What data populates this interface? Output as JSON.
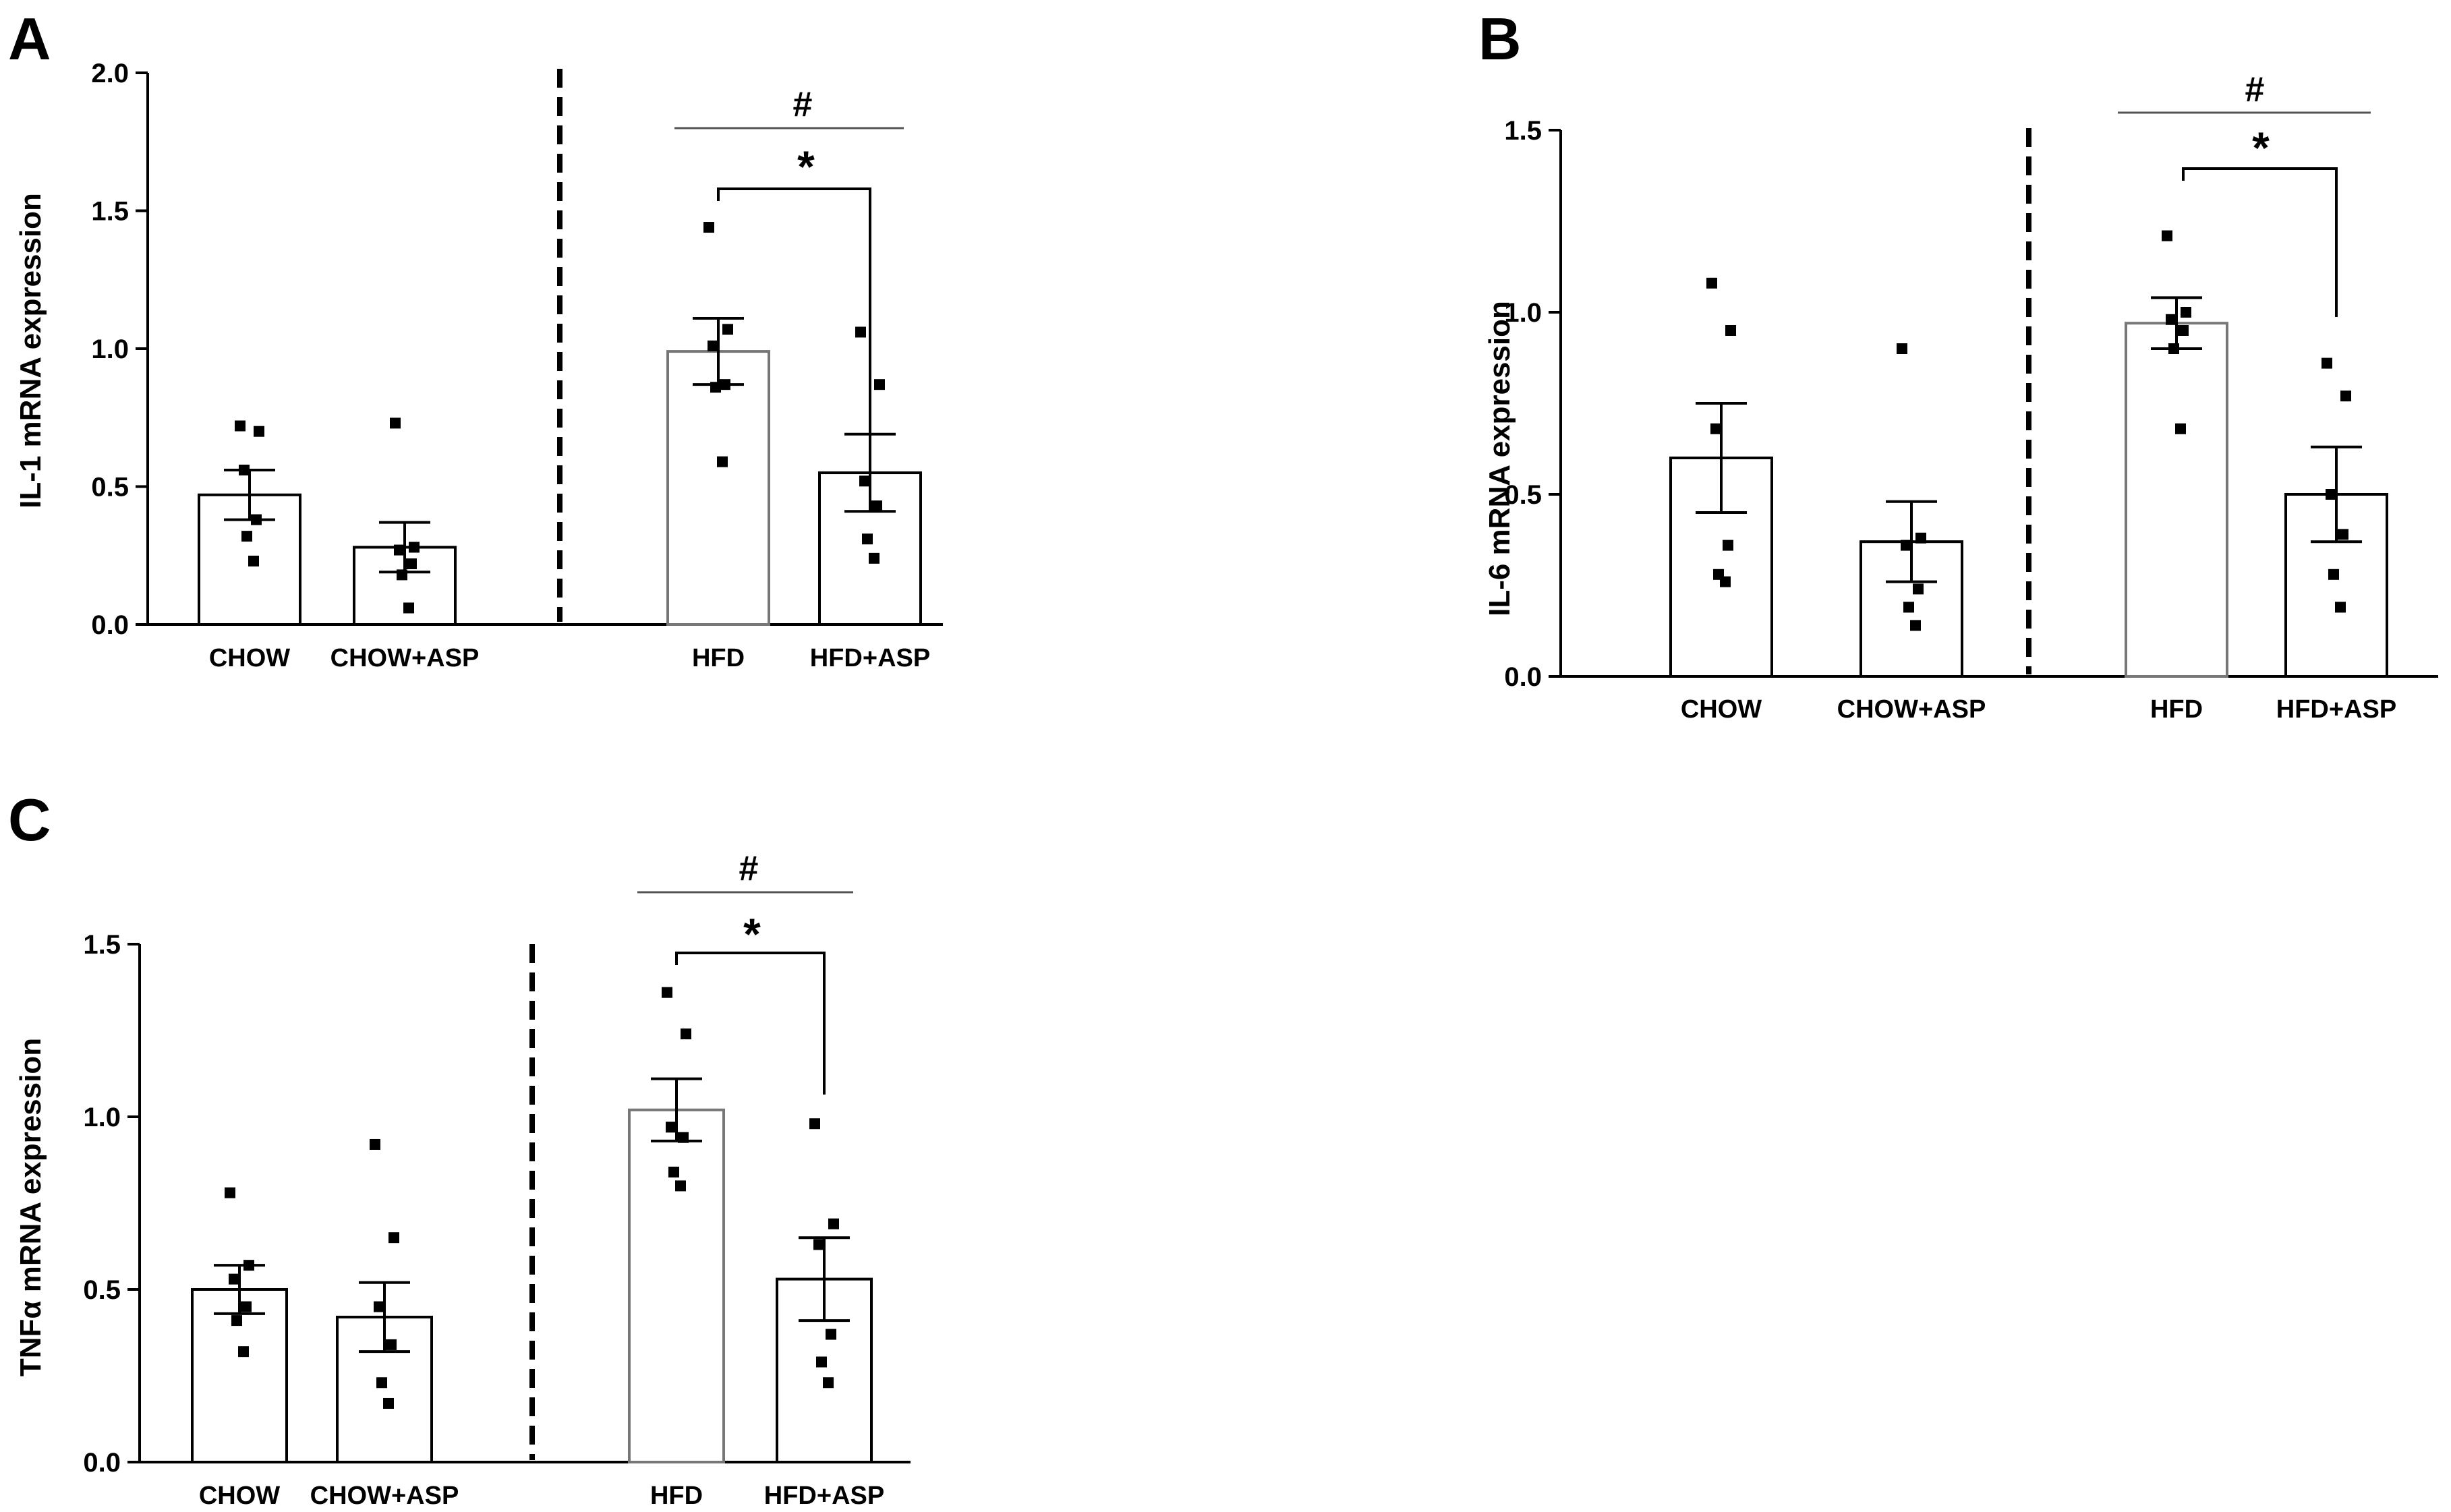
{
  "chart_data": [
    {
      "panel": "A",
      "type": "bar",
      "ylabel": "IL-1 mRNA expression",
      "ylim": [
        0,
        2.0
      ],
      "yticks": [
        "0.0",
        "0.5",
        "1.0",
        "1.5",
        "2.0"
      ],
      "categories": [
        "CHOW",
        "CHOW+ASP",
        "HFD",
        "HFD+ASP"
      ],
      "values": [
        0.47,
        0.28,
        0.99,
        0.55
      ],
      "errors": [
        0.09,
        0.09,
        0.12,
        0.14
      ],
      "points": [
        [
          0.72,
          0.7,
          0.56,
          0.38,
          0.32,
          0.23
        ],
        [
          0.73,
          0.28,
          0.27,
          0.22,
          0.18,
          0.06
        ],
        [
          1.44,
          1.07,
          1.01,
          0.87,
          0.86,
          0.59
        ],
        [
          1.06,
          0.87,
          0.52,
          0.43,
          0.31,
          0.24
        ]
      ],
      "annotations": {
        "hash": "#",
        "star": "*"
      }
    },
    {
      "panel": "B",
      "type": "bar",
      "ylabel": "IL-6 mRNA expression",
      "ylim": [
        0,
        1.5
      ],
      "yticks": [
        "0.0",
        "0.5",
        "1.0",
        "1.5"
      ],
      "categories": [
        "CHOW",
        "CHOW+ASP",
        "HFD",
        "HFD+ASP"
      ],
      "values": [
        0.6,
        0.37,
        0.97,
        0.5
      ],
      "errors": [
        0.15,
        0.11,
        0.07,
        0.13
      ],
      "points": [
        [
          1.08,
          0.95,
          0.68,
          0.36,
          0.28,
          0.26
        ],
        [
          0.9,
          0.38,
          0.36,
          0.24,
          0.19,
          0.14
        ],
        [
          1.21,
          1.0,
          0.98,
          0.95,
          0.9,
          0.68
        ],
        [
          0.86,
          0.77,
          0.5,
          0.39,
          0.28,
          0.19
        ]
      ],
      "annotations": {
        "hash": "#",
        "star": "*"
      }
    },
    {
      "panel": "C",
      "type": "bar",
      "ylabel": "TNFα mRNA expression",
      "ylim": [
        0,
        1.5
      ],
      "yticks": [
        "0.0",
        "0.5",
        "1.0",
        "1.5"
      ],
      "categories": [
        "CHOW",
        "CHOW+ASP",
        "HFD",
        "HFD+ASP"
      ],
      "values": [
        0.5,
        0.42,
        1.02,
        0.53
      ],
      "errors": [
        0.07,
        0.1,
        0.09,
        0.12
      ],
      "points": [
        [
          0.78,
          0.57,
          0.53,
          0.45,
          0.41,
          0.32
        ],
        [
          0.92,
          0.65,
          0.45,
          0.34,
          0.23,
          0.17
        ],
        [
          1.36,
          1.24,
          0.97,
          0.94,
          0.84,
          0.8
        ],
        [
          0.98,
          0.69,
          0.63,
          0.37,
          0.29,
          0.23
        ]
      ],
      "annotations": {
        "hash": "#",
        "star": "*"
      }
    }
  ]
}
